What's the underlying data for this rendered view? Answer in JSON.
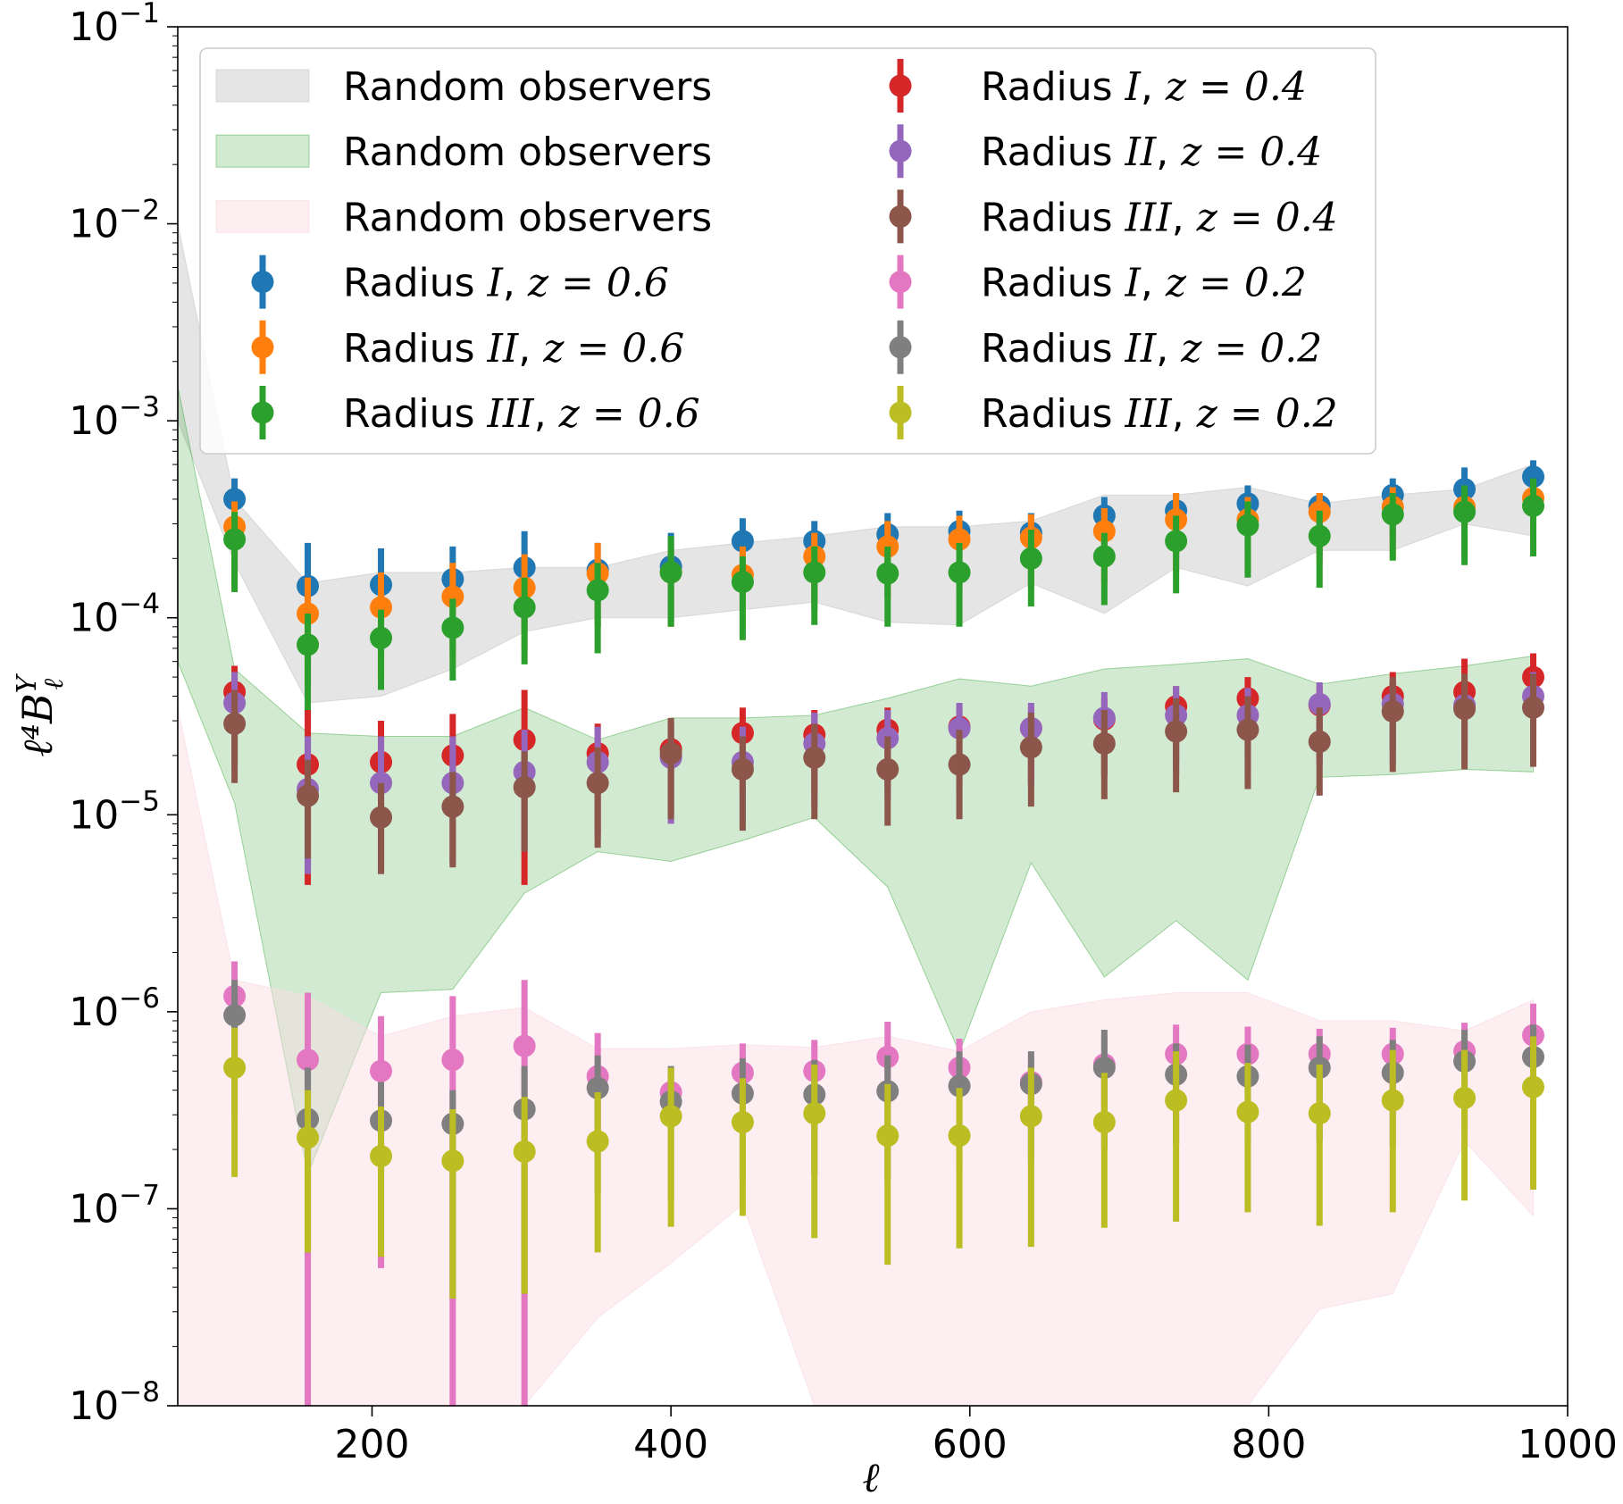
{
  "chart_data": {
    "type": "scatter",
    "subtype": "errorbar-with-bands",
    "title": "",
    "xlabel": "ℓ",
    "ylabel": "ℓ⁴B",
    "ylabel_sup": "Y",
    "ylabel_sub": "ℓ",
    "xscale": "linear",
    "yscale": "log",
    "xlim": [
      70,
      1000
    ],
    "ylim": [
      1e-08,
      0.1
    ],
    "x_ticks": [
      200,
      400,
      600,
      800,
      1000
    ],
    "x_tick_labels": [
      "200",
      "400",
      "600",
      "800",
      "1000"
    ],
    "y_ticks": [
      -8,
      -7,
      -6,
      -5,
      -4,
      -3,
      -2,
      -1
    ],
    "y_tick_labels": [
      "10",
      "10",
      "10",
      "10",
      "10",
      "10",
      "10",
      "10"
    ],
    "y_tick_exponents": [
      "−8",
      "−7",
      "−6",
      "−5",
      "−4",
      "−3",
      "−2",
      "−1"
    ],
    "legend_position": "upper-center",
    "x": [
      108,
      157,
      206,
      254,
      302,
      351,
      400,
      448,
      496,
      545,
      593,
      641,
      690,
      738,
      786,
      834,
      883,
      931,
      977
    ],
    "bands": [
      {
        "name": "Random observers",
        "color": "#cccccc",
        "alpha": 0.5,
        "x": [
          70,
          108,
          157,
          206,
          254,
          302,
          351,
          400,
          448,
          496,
          545,
          593,
          641,
          690,
          738,
          786,
          834,
          883,
          931,
          977
        ],
        "upper": [
          0.01,
          0.0004,
          0.00015,
          0.00017,
          0.00017,
          0.00018,
          0.00018,
          0.00022,
          0.00024,
          0.00026,
          0.00029,
          0.00029,
          0.00031,
          0.00042,
          0.00042,
          0.00046,
          0.00038,
          0.00042,
          0.00045,
          0.0006
        ],
        "lower": [
          0.001,
          0.00019,
          3.7e-05,
          4e-05,
          5.5e-05,
          8.5e-05,
          0.0001,
          0.0001,
          0.00011,
          0.00012,
          9.5e-05,
          9.2e-05,
          0.00015,
          0.000105,
          0.00018,
          0.000145,
          0.00022,
          0.00022,
          0.0003,
          0.00026
        ]
      },
      {
        "name": "Random observers",
        "color": "#2ca02c",
        "alpha": 0.22,
        "x": [
          70,
          108,
          157,
          206,
          254,
          302,
          351,
          400,
          448,
          496,
          545,
          593,
          641,
          690,
          738,
          786,
          834,
          883,
          931,
          977
        ],
        "upper": [
          0.0015,
          5.5e-05,
          2.6e-05,
          2.5e-05,
          2.5e-05,
          3.5e-05,
          2.4e-05,
          3.1e-05,
          3.1e-05,
          3.2e-05,
          3.9e-05,
          4.9e-05,
          4.5e-05,
          5.5e-05,
          5.8e-05,
          6.2e-05,
          4.6e-05,
          5.2e-05,
          5.7e-05,
          6.4e-05
        ],
        "lower": [
          6e-05,
          1.15e-05,
          1.5e-07,
          1.25e-06,
          1.3e-06,
          4e-06,
          6.5e-06,
          5.8e-06,
          7.4e-06,
          9.7e-06,
          4.3e-06,
          6.2e-07,
          5.7e-06,
          1.5e-06,
          2.9e-06,
          1.45e-06,
          1.55e-05,
          1.6e-05,
          1.7e-05,
          1.65e-05
        ]
      },
      {
        "name": "Random observers",
        "color": "#f9dde3",
        "alpha": 0.5,
        "x": [
          70,
          108,
          157,
          206,
          254,
          302,
          351,
          400,
          448,
          496,
          545,
          593,
          641,
          690,
          738,
          786,
          834,
          883,
          931,
          977
        ],
        "upper": [
          3.5e-05,
          1.45e-06,
          1.2e-06,
          7.5e-07,
          9.5e-07,
          1.05e-06,
          6.5e-07,
          6.5e-07,
          6.8e-07,
          6.6e-07,
          7.5e-07,
          6.3e-07,
          1e-06,
          1.15e-06,
          1.25e-06,
          1.25e-06,
          9e-07,
          9e-07,
          8e-07,
          1.15e-06
        ],
        "lower": [
          1e-08,
          1e-08,
          1e-08,
          1e-08,
          1e-08,
          1e-08,
          2.8e-08,
          5.3e-08,
          1.05e-07,
          1e-08,
          1e-08,
          1e-08,
          1e-08,
          1e-08,
          1e-08,
          1e-08,
          3.1e-08,
          3.7e-08,
          2.2e-07,
          9.2e-08
        ]
      }
    ],
    "series": [
      {
        "name": "Radius I, z = 0.6",
        "label_pre": "Radius",
        "label_roman": "I",
        "z": "z = 0.6",
        "color": "#1f77b4",
        "values": [
          0.0004,
          0.000145,
          0.000147,
          0.000157,
          0.00018,
          0.000175,
          0.000182,
          0.000245,
          0.000245,
          0.000265,
          0.000275,
          0.00027,
          0.00033,
          0.00035,
          0.00038,
          0.00037,
          0.00042,
          0.00045,
          0.00052
        ],
        "lower": [
          0.00021,
          6e-05,
          6.5e-05,
          7e-05,
          8.5e-05,
          9e-05,
          9.5e-05,
          0.00012,
          0.00012,
          0.00013,
          0.000145,
          0.000145,
          0.00018,
          0.0002,
          0.00022,
          0.00021,
          0.00025,
          0.00027,
          0.00031
        ],
        "upper": [
          0.00051,
          0.00024,
          0.000225,
          0.00023,
          0.000275,
          0.00024,
          0.00027,
          0.00032,
          0.00031,
          0.00034,
          0.00035,
          0.00034,
          0.00041,
          0.00043,
          0.00047,
          0.00043,
          0.00051,
          0.00058,
          0.00063
        ]
      },
      {
        "name": "Radius II, z = 0.6",
        "label_pre": "Radius",
        "label_roman": "II",
        "z": "z = 0.6",
        "color": "#ff7f0e",
        "values": [
          0.00029,
          0.000105,
          0.000113,
          0.000128,
          0.000142,
          0.000168,
          0.00017,
          0.000165,
          0.000205,
          0.00023,
          0.00025,
          0.000255,
          0.000275,
          0.000315,
          0.000315,
          0.000345,
          0.000365,
          0.000365,
          0.000405
        ],
        "lower": [
          0.00014,
          4.5e-05,
          5e-05,
          6e-05,
          7e-05,
          9e-05,
          9e-05,
          8.5e-05,
          0.00011,
          0.000125,
          0.000135,
          0.00014,
          0.00015,
          0.00017,
          0.00017,
          0.00019,
          0.0002,
          0.0002,
          0.000225
        ],
        "upper": [
          0.00039,
          0.00016,
          0.00017,
          0.00019,
          0.00021,
          0.00024,
          0.00024,
          0.00023,
          0.00027,
          0.00031,
          0.00033,
          0.000335,
          0.00036,
          0.00043,
          0.00041,
          0.00043,
          0.00046,
          0.00044,
          0.0005
        ]
      },
      {
        "name": "Radius III, z = 0.6",
        "label_pre": "Radius",
        "label_roman": "III",
        "z": "z = 0.6",
        "color": "#2ca02c",
        "values": [
          0.00025,
          7.3e-05,
          7.9e-05,
          8.9e-05,
          0.000113,
          0.000138,
          0.00017,
          0.000152,
          0.00017,
          0.000168,
          0.00017,
          0.0002,
          0.000205,
          0.000245,
          0.000295,
          0.00026,
          0.000335,
          0.000345,
          0.00037
        ],
        "lower": [
          0.000135,
          3.2e-05,
          4.3e-05,
          4.8e-05,
          5.8e-05,
          6.6e-05,
          9e-05,
          7.7e-05,
          9.2e-05,
          9e-05,
          9e-05,
          0.000114,
          0.000116,
          0.000133,
          0.00016,
          0.000142,
          0.000195,
          0.000185,
          0.000205
        ],
        "upper": [
          0.000345,
          0.000105,
          0.00011,
          0.000125,
          0.00016,
          0.00019,
          0.00026,
          0.000205,
          0.00023,
          0.00023,
          0.00024,
          0.00028,
          0.00027,
          0.00033,
          0.00039,
          0.00035,
          0.00043,
          0.00047,
          0.00051
        ]
      },
      {
        "name": "Radius I, z = 0.4",
        "label_pre": "Radius",
        "label_roman": "I",
        "z": "z = 0.4",
        "color": "#d62728",
        "values": [
          4.2e-05,
          1.8e-05,
          1.85e-05,
          2e-05,
          2.4e-05,
          2.05e-05,
          2.15e-05,
          2.6e-05,
          2.55e-05,
          2.7e-05,
          2.8e-05,
          2.75e-05,
          3.05e-05,
          3.55e-05,
          3.9e-05,
          3.6e-05,
          4e-05,
          4.2e-05,
          5e-05
        ],
        "lower": [
          1.8e-05,
          4.4e-06,
          5.4e-06,
          5.8e-06,
          4.4e-06,
          8e-06,
          1e-05,
          1.25e-05,
          1.3e-05,
          1.35e-05,
          1.4e-05,
          1.45e-05,
          1.6e-05,
          1.85e-05,
          2e-05,
          1.9e-05,
          2.1e-05,
          2.2e-05,
          2.6e-05
        ],
        "upper": [
          5.7e-05,
          3.4e-05,
          3e-05,
          3.25e-05,
          4.3e-05,
          2.9e-05,
          3e-05,
          3.5e-05,
          3.4e-05,
          3.5e-05,
          3.6e-05,
          3.5e-05,
          3.9e-05,
          4.5e-05,
          5e-05,
          4.5e-05,
          5.3e-05,
          6.2e-05,
          6.6e-05
        ]
      },
      {
        "name": "Radius II, z = 0.4",
        "label_pre": "Radius",
        "label_roman": "II",
        "z": "z = 0.4",
        "color": "#9467bd",
        "values": [
          3.7e-05,
          1.35e-05,
          1.45e-05,
          1.45e-05,
          1.65e-05,
          1.85e-05,
          1.95e-05,
          1.85e-05,
          2.3e-05,
          2.45e-05,
          2.75e-05,
          2.75e-05,
          3.1e-05,
          3.2e-05,
          3.2e-05,
          3.65e-05,
          3.65e-05,
          3.6e-05,
          4e-05
        ],
        "lower": [
          1.7e-05,
          5e-06,
          5e-06,
          5.6e-06,
          6.5e-06,
          7.5e-06,
          9e-06,
          9e-06,
          1.1e-05,
          1.2e-05,
          1.35e-05,
          1.4e-05,
          1.55e-05,
          1.6e-05,
          1.6e-05,
          1.8e-05,
          1.8e-05,
          1.8e-05,
          2e-05
        ],
        "upper": [
          5.3e-05,
          2.5e-05,
          2.5e-05,
          2.5e-05,
          2.7e-05,
          2.8e-05,
          2.9e-05,
          2.8e-05,
          3.3e-05,
          3.4e-05,
          3.7e-05,
          3.7e-05,
          4.2e-05,
          4.5e-05,
          4.4e-05,
          4.7e-05,
          4.8e-05,
          4.9e-05,
          5.3e-05
        ]
      },
      {
        "name": "Radius III, z = 0.4",
        "label_pre": "Radius",
        "label_roman": "III",
        "z": "z = 0.4",
        "color": "#8c564b",
        "values": [
          2.9e-05,
          1.25e-05,
          9.7e-06,
          1.1e-05,
          1.38e-05,
          1.45e-05,
          2.05e-05,
          1.7e-05,
          1.95e-05,
          1.7e-05,
          1.8e-05,
          2.2e-05,
          2.3e-05,
          2.65e-05,
          2.7e-05,
          2.35e-05,
          3.35e-05,
          3.45e-05,
          3.5e-05
        ],
        "lower": [
          1.45e-05,
          6e-06,
          5e-06,
          5.4e-06,
          6.5e-06,
          6.8e-06,
          9.5e-06,
          8.3e-06,
          9.5e-06,
          8.8e-06,
          9.5e-06,
          1.1e-05,
          1.2e-05,
          1.3e-05,
          1.35e-05,
          1.25e-05,
          1.65e-05,
          1.7e-05,
          1.75e-05
        ],
        "upper": [
          4.3e-05,
          1.9e-05,
          1.45e-05,
          1.65e-05,
          2.1e-05,
          2.2e-05,
          3.1e-05,
          2.5e-05,
          2.9e-05,
          2.5e-05,
          2.7e-05,
          3.3e-05,
          3.4e-05,
          3.9e-05,
          4e-05,
          3.5e-05,
          5e-05,
          5.2e-05,
          5.2e-05
        ]
      },
      {
        "name": "Radius I, z = 0.2",
        "label_pre": "Radius",
        "label_roman": "I",
        "z": "z = 0.2",
        "color": "#e377c2",
        "values": [
          1.2e-06,
          5.7e-07,
          5e-07,
          5.7e-07,
          6.7e-07,
          4.7e-07,
          3.9e-07,
          4.9e-07,
          5e-07,
          5.9e-07,
          5.2e-07,
          4.4e-07,
          5.4e-07,
          6.1e-07,
          6.1e-07,
          6.1e-07,
          6.1e-07,
          6.3e-07,
          7.6e-07
        ],
        "lower": [
          5e-07,
          1e-08,
          5e-08,
          1e-08,
          1e-08,
          2.1e-07,
          2.7e-07,
          3e-07,
          2.6e-07,
          3.6e-07,
          3.3e-07,
          2.8e-07,
          3.3e-07,
          3.9e-07,
          3.9e-07,
          3.9e-07,
          3.9e-07,
          4e-07,
          4.8e-07
        ],
        "upper": [
          1.8e-06,
          1.25e-06,
          9.5e-07,
          1.2e-06,
          1.45e-06,
          7.8e-07,
          5.2e-07,
          6.9e-07,
          7.2e-07,
          8.9e-07,
          7.3e-07,
          6e-07,
          7.6e-07,
          8.6e-07,
          8.4e-07,
          8.2e-07,
          8.3e-07,
          8.8e-07,
          1.1e-06
        ]
      },
      {
        "name": "Radius II, z = 0.2",
        "label_pre": "Radius",
        "label_roman": "II",
        "z": "z = 0.2",
        "color": "#7f7f7f",
        "values": [
          9.6e-07,
          2.85e-07,
          2.8e-07,
          2.7e-07,
          3.2e-07,
          4.1e-07,
          3.5e-07,
          3.85e-07,
          3.8e-07,
          3.95e-07,
          4.2e-07,
          4.3e-07,
          5.2e-07,
          4.8e-07,
          4.7e-07,
          5.2e-07,
          4.9e-07,
          5.6e-07,
          5.9e-07
        ],
        "lower": [
          3e-07,
          6e-08,
          6e-08,
          3.5e-08,
          3.7e-08,
          1.2e-07,
          1.1e-07,
          1.4e-07,
          1.5e-07,
          1.4e-07,
          1.6e-07,
          1.7e-07,
          2e-07,
          2.1e-07,
          2.2e-07,
          2.2e-07,
          2.1e-07,
          2.5e-07,
          2.7e-07
        ],
        "upper": [
          1.45e-06,
          5.2e-07,
          4.4e-07,
          4e-07,
          5.3e-07,
          6e-07,
          5.3e-07,
          5.8e-07,
          5.7e-07,
          6e-07,
          6.3e-07,
          6.3e-07,
          8.1e-07,
          6.9e-07,
          6.8e-07,
          7.5e-07,
          7.2e-07,
          8.1e-07,
          8.6e-07
        ]
      },
      {
        "name": "Radius III, z = 0.2",
        "label_pre": "Radius",
        "label_roman": "III",
        "z": "z = 0.2",
        "color": "#bcbd22",
        "values": [
          5.2e-07,
          2.3e-07,
          1.85e-07,
          1.75e-07,
          1.95e-07,
          2.2e-07,
          2.95e-07,
          2.75e-07,
          3.05e-07,
          2.35e-07,
          2.35e-07,
          2.95e-07,
          2.75e-07,
          3.55e-07,
          3.1e-07,
          3.05e-07,
          3.55e-07,
          3.65e-07,
          4.15e-07
        ],
        "lower": [
          1.45e-07,
          6e-08,
          5.7e-08,
          3.5e-08,
          3.7e-08,
          6e-08,
          8.1e-08,
          9.2e-08,
          7.1e-08,
          5.2e-08,
          6.3e-08,
          6.4e-08,
          8e-08,
          8.6e-08,
          9.6e-08,
          8.2e-08,
          9.6e-08,
          1.1e-07,
          1.25e-07
        ],
        "upper": [
          8.3e-07,
          4e-07,
          3.3e-07,
          3.2e-07,
          3.7e-07,
          3.9e-07,
          5.2e-07,
          4.6e-07,
          5.4e-07,
          4.3e-07,
          4.1e-07,
          5.2e-07,
          4.9e-07,
          6.3e-07,
          5.5e-07,
          5.4e-07,
          6.4e-07,
          6.4e-07,
          7.5e-07
        ]
      }
    ]
  }
}
